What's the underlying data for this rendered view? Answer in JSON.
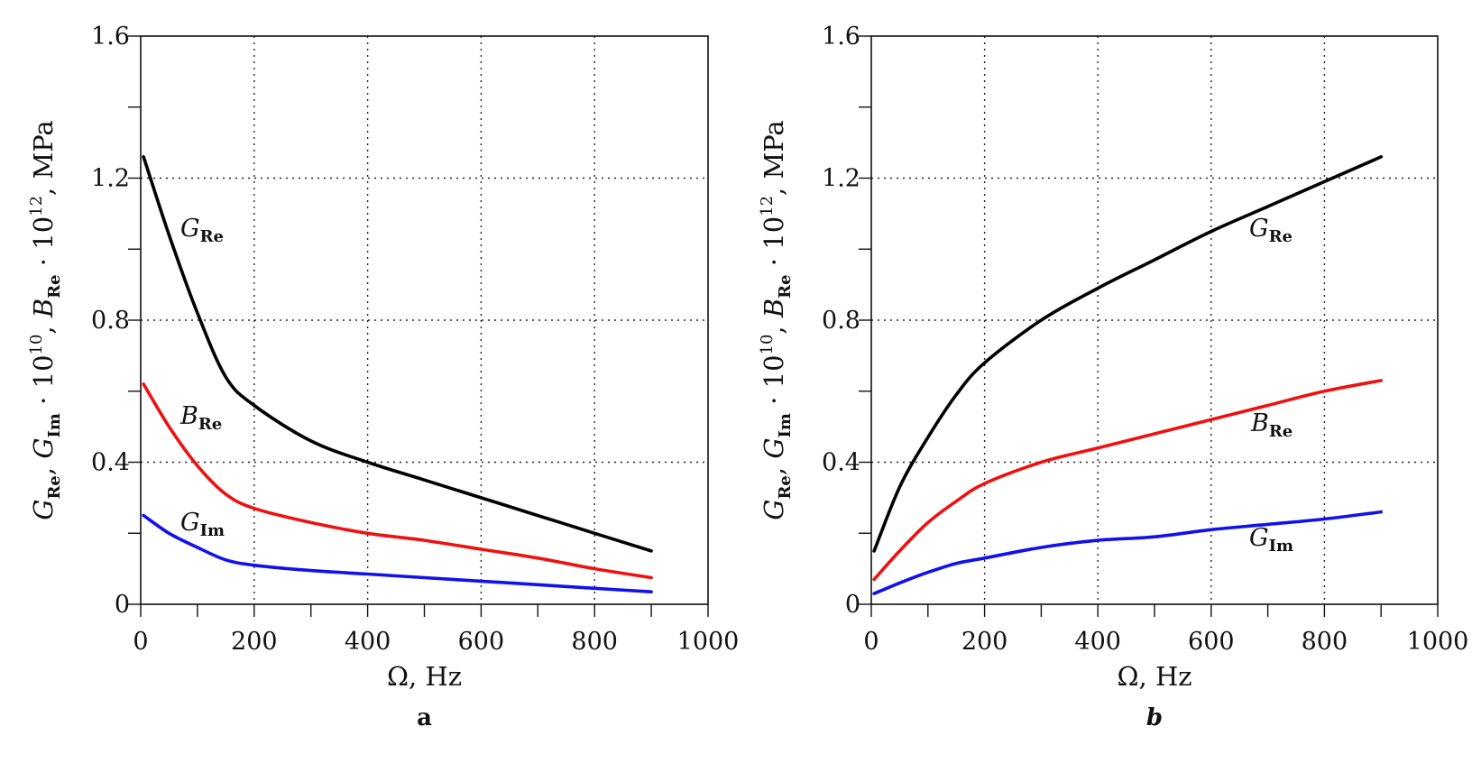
{
  "chart_data": [
    {
      "type": "line",
      "panel_label": "a",
      "xlabel": "Ω, Hz",
      "ylabel_parts": {
        "g": "G",
        "re": "Re",
        "im": "Im",
        "b": "B",
        "dot": "·",
        "ten": "10",
        "exp10": "10",
        "exp12": "12",
        "unit": ", MPa",
        "comma": ", "
      },
      "xlim": [
        0,
        1000
      ],
      "ylim": [
        0,
        1.6
      ],
      "xticks": [
        "0",
        "200",
        "400",
        "600",
        "800",
        "1000"
      ],
      "yticks": [
        "0",
        "0.4",
        "0.8",
        "1.2",
        "1.6"
      ],
      "grid": true,
      "x": [
        5,
        50,
        100,
        150,
        200,
        300,
        400,
        500,
        600,
        700,
        800,
        900
      ],
      "series": [
        {
          "name": "G_Re",
          "label_main": "G",
          "label_sub": "Re",
          "color": "#000000",
          "values": [
            1.26,
            1.04,
            0.82,
            0.64,
            0.56,
            0.46,
            0.4,
            0.35,
            0.3,
            0.25,
            0.2,
            0.15
          ]
        },
        {
          "name": "B_Re",
          "label_main": "B",
          "label_sub": "Re",
          "color": "#ee1111",
          "values": [
            0.62,
            0.5,
            0.39,
            0.31,
            0.27,
            0.23,
            0.2,
            0.18,
            0.155,
            0.13,
            0.1,
            0.075
          ]
        },
        {
          "name": "G_Im",
          "label_main": "G",
          "label_sub": "Im",
          "color": "#1111ee",
          "values": [
            0.25,
            0.2,
            0.16,
            0.125,
            0.11,
            0.095,
            0.085,
            0.075,
            0.065,
            0.055,
            0.045,
            0.035
          ]
        }
      ]
    },
    {
      "type": "line",
      "panel_label": "b",
      "xlabel": "Ω, Hz",
      "ylabel_parts": {
        "g": "G",
        "re": "Re",
        "im": "Im",
        "b": "B",
        "dot": "·",
        "ten": "10",
        "exp10": "10",
        "exp12": "12",
        "unit": ", MPa",
        "comma": ", "
      },
      "xlim": [
        0,
        1000
      ],
      "ylim": [
        0,
        1.6
      ],
      "xticks": [
        "0",
        "200",
        "400",
        "600",
        "800",
        "1000"
      ],
      "yticks": [
        "0",
        "0.4",
        "0.8",
        "1.2",
        "1.6"
      ],
      "grid": true,
      "x": [
        5,
        50,
        100,
        150,
        200,
        300,
        400,
        500,
        600,
        700,
        800,
        900
      ],
      "series": [
        {
          "name": "G_Re",
          "label_main": "G",
          "label_sub": "Re",
          "color": "#000000",
          "values": [
            0.15,
            0.33,
            0.47,
            0.59,
            0.68,
            0.8,
            0.89,
            0.97,
            1.05,
            1.12,
            1.19,
            1.26
          ]
        },
        {
          "name": "B_Re",
          "label_main": "B",
          "label_sub": "Re",
          "color": "#ee1111",
          "values": [
            0.07,
            0.15,
            0.23,
            0.29,
            0.34,
            0.4,
            0.44,
            0.48,
            0.52,
            0.56,
            0.6,
            0.63
          ]
        },
        {
          "name": "G_Im",
          "label_main": "G",
          "label_sub": "Im",
          "color": "#1111ee",
          "values": [
            0.03,
            0.06,
            0.09,
            0.115,
            0.13,
            0.16,
            0.18,
            0.19,
            0.21,
            0.225,
            0.24,
            0.26
          ]
        }
      ]
    }
  ]
}
